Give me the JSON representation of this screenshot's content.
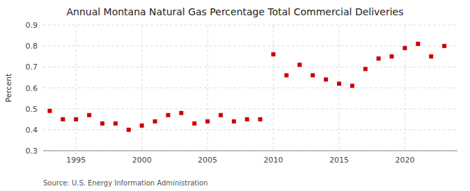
{
  "chart_data": {
    "type": "scatter",
    "title": "Annual Montana Natural Gas Percentage Total Commercial Deliveries",
    "ylabel": "Percent",
    "source": "Source: U.S. Energy Information Administration",
    "x": [
      1993,
      1994,
      1995,
      1996,
      1997,
      1998,
      1999,
      2000,
      2001,
      2002,
      2003,
      2004,
      2005,
      2006,
      2007,
      2008,
      2009,
      2010,
      2011,
      2012,
      2013,
      2014,
      2015,
      2016,
      2017,
      2018,
      2019,
      2020,
      2021,
      2022,
      2023
    ],
    "values": [
      0.49,
      0.45,
      0.45,
      0.47,
      0.43,
      0.43,
      0.4,
      0.42,
      0.44,
      0.47,
      0.48,
      0.43,
      0.44,
      0.47,
      0.44,
      0.45,
      0.45,
      0.76,
      0.66,
      0.71,
      0.66,
      0.64,
      0.62,
      0.61,
      0.69,
      0.74,
      0.75,
      0.79,
      0.81,
      0.75,
      0.8
    ],
    "color": "#cc0000",
    "marker": "square",
    "xlim": [
      1992.5,
      2024
    ],
    "xticks": [
      1995,
      2000,
      2005,
      2010,
      2015,
      2020
    ],
    "ylim": [
      0.3,
      0.9
    ],
    "yticks": [
      0.3,
      0.4,
      0.5,
      0.6,
      0.7,
      0.8,
      0.9
    ],
    "grid": true
  }
}
